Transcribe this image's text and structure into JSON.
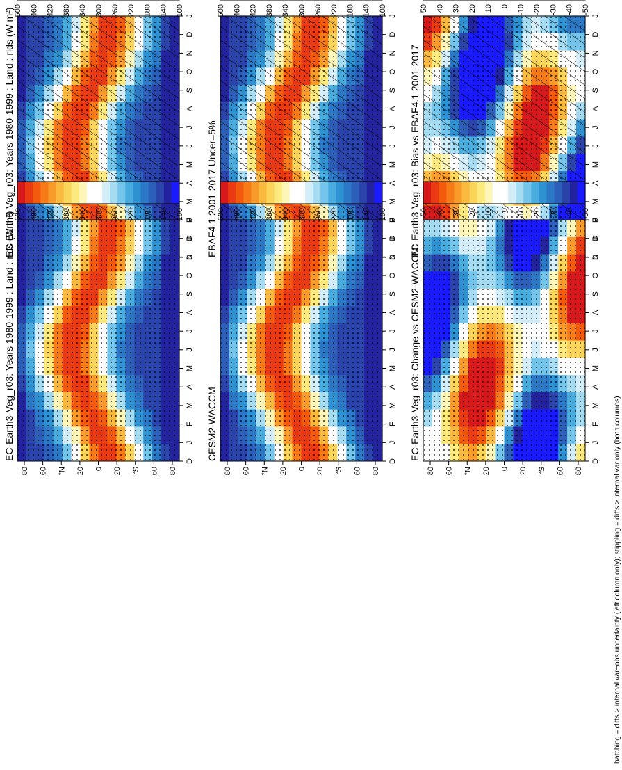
{
  "figure": {
    "footnote": "hatching = diffs > internal var+obs uncertainty (left column only); stippling = diffs > internal var only (both columns)"
  },
  "colors": {
    "abs_scale": [
      "#d7191c",
      "#e93a13",
      "#f35a0e",
      "#f67a17",
      "#f89b2a",
      "#f9b93e",
      "#fbd45a",
      "#fcea7e",
      "#fdf6b8",
      "#ffffff",
      "#ffffff",
      "#d4eef9",
      "#a6dcf2",
      "#74c5ec",
      "#48acdf",
      "#2e92d2",
      "#2b79c6",
      "#2c5fba",
      "#2b44ac",
      "#2323a0",
      "#1a1aff"
    ],
    "diff_scale": [
      "#d7191c",
      "#e93a13",
      "#f35a0e",
      "#f67a17",
      "#f89b2a",
      "#f9b93e",
      "#fbd45a",
      "#fcea7e",
      "#fdf6b8",
      "#ffffff",
      "#ffffff",
      "#d4eef9",
      "#a6dcf2",
      "#74c5ec",
      "#48acdf",
      "#2e92d2",
      "#2b79c6",
      "#2c5fba",
      "#2b44ac",
      "#2323a0",
      "#1a1aff"
    ]
  },
  "chart_data": [
    {
      "id": "p1",
      "type": "heatmap",
      "title": "EC-Earth3-Veg_r03: Years 1980-1999 : Land : rlds (W m²)",
      "x": [
        "D",
        "J",
        "F",
        "M",
        "A",
        "M",
        "J",
        "J",
        "A",
        "S",
        "O",
        "N",
        "D",
        "J"
      ],
      "y_ticks": [
        "80",
        "60",
        "°N",
        "20",
        "0",
        "20",
        "°S",
        "60",
        "80"
      ],
      "colorbar": [
        500,
        460,
        420,
        380,
        340,
        300,
        260,
        220,
        180,
        140,
        100
      ],
      "zmax": 520,
      "zmin": 80,
      "hatching": true,
      "stippling": true
    },
    {
      "id": "p2",
      "type": "heatmap",
      "title": "EC-Earth3-Veg_r03: Years 1980-1999 : Land : rlds (W m²)",
      "x": [
        "D",
        "J",
        "F",
        "M",
        "A",
        "M",
        "J",
        "J",
        "A",
        "S",
        "O",
        "N",
        "D",
        "J"
      ],
      "y_ticks": [
        "80",
        "60",
        "°N",
        "20",
        "0",
        "20",
        "°S",
        "60",
        "80"
      ],
      "colorbar": [
        500,
        460,
        420,
        380,
        340,
        300,
        260,
        220,
        180,
        140,
        100
      ],
      "zmax": 520,
      "zmin": 80,
      "hatching": false,
      "stippling": true
    },
    {
      "id": "p3",
      "type": "heatmap",
      "title": "EBAF4.1 2001-2017 Uncer=5%",
      "x": [
        "D",
        "J",
        "F",
        "M",
        "A",
        "M",
        "J",
        "J",
        "A",
        "S",
        "O",
        "N",
        "D",
        "J"
      ],
      "y_ticks": [
        "80",
        "60",
        "°N",
        "20",
        "0",
        "20",
        "°S",
        "60",
        "80"
      ],
      "colorbar": [
        500,
        460,
        420,
        380,
        340,
        300,
        260,
        220,
        180,
        140,
        100
      ],
      "zmax": 520,
      "zmin": 80,
      "hatching": true,
      "stippling": true
    },
    {
      "id": "p4",
      "type": "heatmap",
      "title": "CESM2-WACCM",
      "x": [
        "D",
        "J",
        "F",
        "M",
        "A",
        "M",
        "J",
        "J",
        "A",
        "S",
        "O",
        "N",
        "D",
        "J"
      ],
      "y_ticks": [
        "80",
        "60",
        "°N",
        "20",
        "0",
        "20",
        "°S",
        "60",
        "80"
      ],
      "colorbar": [
        500,
        460,
        420,
        380,
        340,
        300,
        260,
        220,
        180,
        140,
        100
      ],
      "zmax": 520,
      "zmin": 80,
      "hatching": false,
      "stippling": true
    },
    {
      "id": "p5",
      "type": "heatmap",
      "title": "EC-Earth3-Veg_r03: Bias vs EBAF4.1 2001-2017",
      "x": [
        "D",
        "J",
        "F",
        "M",
        "A",
        "M",
        "J",
        "J",
        "A",
        "S",
        "O",
        "N",
        "D",
        "J"
      ],
      "y_ticks": [
        "80",
        "60",
        "°N",
        "20",
        "0",
        "20",
        "°S",
        "60",
        "80"
      ],
      "colorbar": [
        50,
        40,
        30,
        20,
        10,
        0,
        -10,
        -20,
        -30,
        -40,
        -50
      ],
      "zmax": 55,
      "zmin": -55,
      "hatching": true,
      "stippling": true
    },
    {
      "id": "p6",
      "type": "heatmap",
      "title": "EC-Earth3-Veg_r03: Change vs CESM2-WACCM",
      "x": [
        "D",
        "J",
        "F",
        "M",
        "A",
        "M",
        "J",
        "J",
        "A",
        "S",
        "O",
        "N",
        "D",
        "J"
      ],
      "y_ticks": [
        "80",
        "60",
        "°N",
        "20",
        "0",
        "20",
        "°S",
        "60",
        "80"
      ],
      "colorbar": [
        50,
        40,
        30,
        20,
        10,
        0,
        -10,
        -20,
        -30,
        -40,
        -50
      ],
      "zmax": 55,
      "zmin": -55,
      "hatching": false,
      "stippling": true
    }
  ]
}
